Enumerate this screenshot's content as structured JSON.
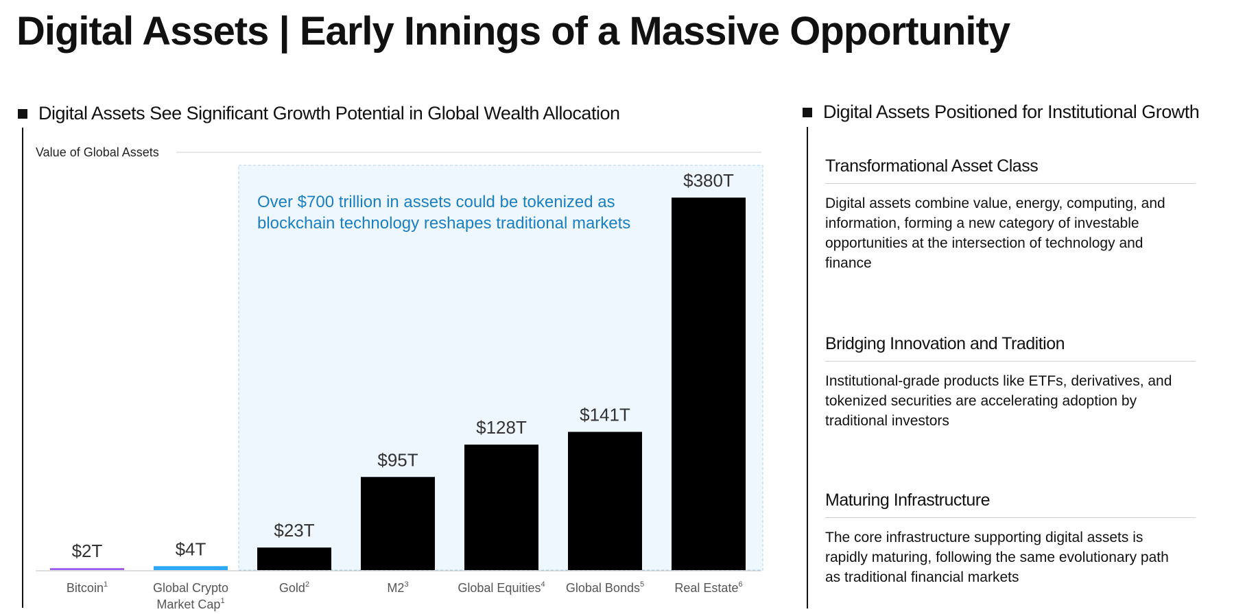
{
  "page": {
    "title": "Digital Assets | Early Innings of a Massive Opportunity"
  },
  "left_section": {
    "heading": "Digital Assets See Significant Growth Potential in Global Wealth Allocation"
  },
  "right_section": {
    "heading": "Digital Assets Positioned for Institutional Growth",
    "items": [
      {
        "title": "Transformational Asset Class",
        "body": "Digital assets combine value, energy, computing, and information, forming a new category of investable opportunities at the intersection of technology and finance"
      },
      {
        "title": "Bridging Innovation and Tradition",
        "body": "Institutional-grade products like ETFs, derivatives, and tokenized securities are accelerating adoption by traditional investors"
      },
      {
        "title": "Maturing Infrastructure",
        "body": "The core infrastructure supporting digital assets is rapidly maturing, following the same evolutionary path as traditional financial markets"
      }
    ]
  },
  "chart_data": {
    "type": "bar",
    "title": "Value of Global Assets",
    "xlabel": "",
    "ylabel": "",
    "ylim": [
      0,
      380
    ],
    "grid": false,
    "categories": [
      {
        "label": "Bitcoin",
        "sup": "1"
      },
      {
        "label": "Global Crypto Market Cap",
        "sup": "1"
      },
      {
        "label": "Gold",
        "sup": "2"
      },
      {
        "label": "M2",
        "sup": "3"
      },
      {
        "label": "Global Equities",
        "sup": "4"
      },
      {
        "label": "Global Bonds",
        "sup": "5"
      },
      {
        "label": "Real Estate",
        "sup": "6"
      }
    ],
    "values": [
      2,
      4,
      23,
      95,
      128,
      141,
      380
    ],
    "value_labels": [
      "$2T",
      "$4T",
      "$23T",
      "$95T",
      "$128T",
      "$141T",
      "$380T"
    ],
    "bar_colors": [
      "#9b5cf0",
      "#2ea8f5",
      "#000000",
      "#000000",
      "#000000",
      "#000000",
      "#000000"
    ],
    "annotation": {
      "text": "Over $700 trillion in assets could be tokenized as blockchain technology reshapes traditional markets",
      "lines": [
        "Over $700 trillion in assets could be tokenized as",
        "blockchain technology reshapes traditional markets"
      ],
      "color": "#1a7fc1",
      "box_fill": "#eef7fd",
      "highlight_range": [
        "Gold",
        "Real Estate"
      ]
    }
  }
}
